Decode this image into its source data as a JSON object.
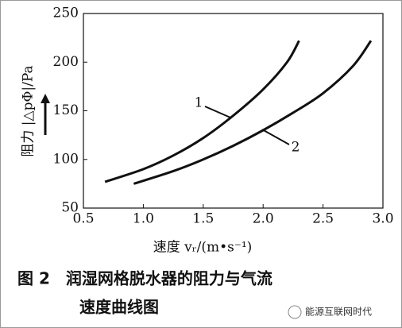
{
  "chart_data": {
    "type": "line",
    "xlabel": "速度 vᵣ/(m•s⁻¹)",
    "ylabel": "阻力 |△pΦ|/Pa",
    "xlim": [
      0.5,
      3.0
    ],
    "xticks": [
      0.5,
      {
        "value": 1.0,
        "label": "1.0"
      },
      1.5,
      {
        "value": 2.0,
        "label": "2.0"
      },
      2.5,
      {
        "value": 3.0,
        "label": "3.0"
      }
    ],
    "ylim": [
      50,
      250
    ],
    "yticks": [
      50,
      100,
      150,
      200,
      250
    ],
    "series": [
      {
        "name": "1",
        "color": "#111111",
        "x": [
          0.68,
          1.0,
          1.25,
          1.5,
          1.75,
          2.0,
          2.2,
          2.3
        ],
        "values": [
          77,
          90,
          104,
          122,
          145,
          172,
          200,
          222
        ]
      },
      {
        "name": "2",
        "color": "#111111",
        "x": [
          0.92,
          1.25,
          1.5,
          1.75,
          2.0,
          2.25,
          2.5,
          2.75,
          2.9
        ],
        "values": [
          75,
          88,
          100,
          114,
          130,
          148,
          168,
          196,
          222
        ]
      }
    ]
  },
  "caption": {
    "lines": [
      "图 2　润湿网格脱水器的阻力与气流",
      "速度曲线图"
    ]
  },
  "watermark": "能源互联网时代"
}
